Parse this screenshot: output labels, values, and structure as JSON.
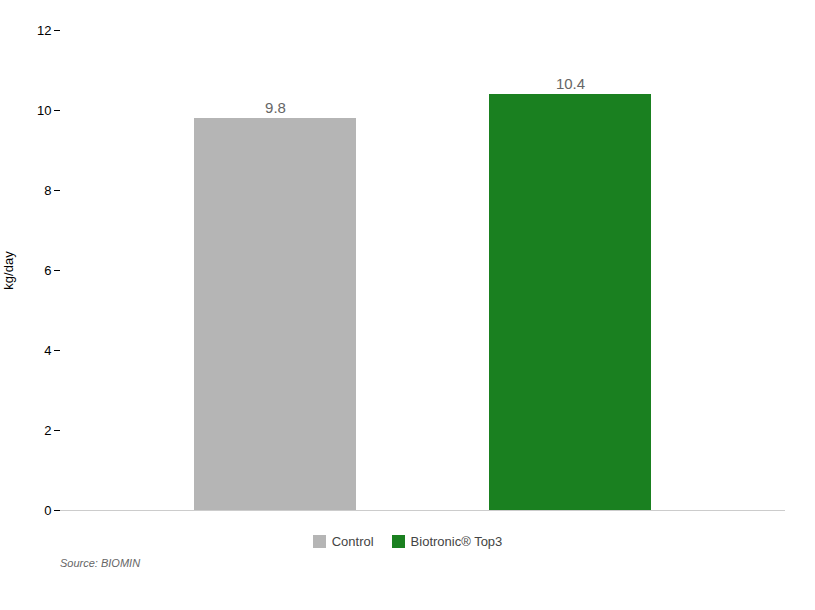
{
  "chart_data": {
    "type": "bar",
    "categories": [
      "Control",
      "Biotronic® Top3"
    ],
    "values": [
      9.8,
      10.4
    ],
    "colors": [
      "#b5b5b5",
      "#1a8020"
    ],
    "ylabel": "kg/day",
    "ylim": [
      0,
      12
    ],
    "yticks": [
      0,
      2,
      4,
      6,
      8,
      10,
      12
    ],
    "grid": false,
    "data_labels": true,
    "tick_labels": "y",
    "legend": "bottom",
    "caption": "Source: BIOMIN"
  }
}
